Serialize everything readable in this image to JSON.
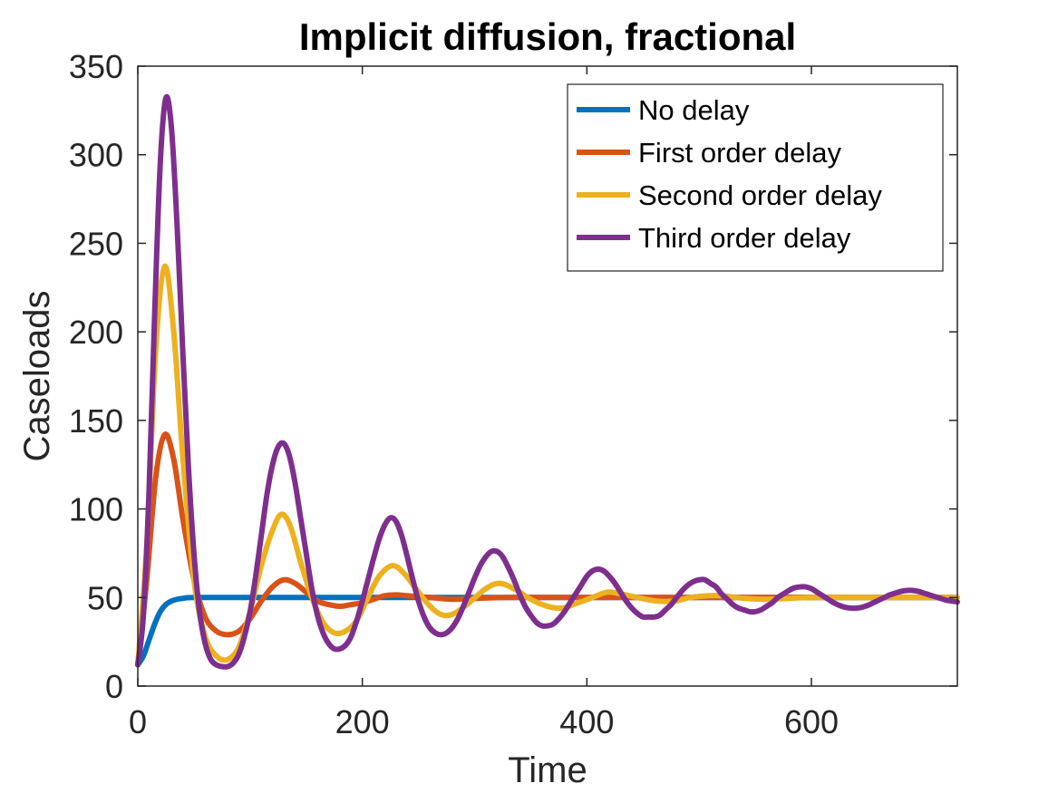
{
  "chart_data": {
    "type": "line",
    "title": "Implicit diffusion, fractional",
    "xlabel": "Time",
    "ylabel": "Caseloads",
    "xlim": [
      0,
      730
    ],
    "ylim": [
      0,
      350
    ],
    "xticks": [
      0,
      200,
      400,
      600
    ],
    "yticks": [
      0,
      50,
      100,
      150,
      200,
      250,
      300,
      350
    ],
    "grid": false,
    "legend_position": "top-right",
    "series": [
      {
        "name": "No delay",
        "color": "#0072BD",
        "points": [
          [
            0,
            12
          ],
          [
            5,
            17
          ],
          [
            10,
            26
          ],
          [
            15,
            35
          ],
          [
            20,
            42
          ],
          [
            25,
            46
          ],
          [
            30,
            48
          ],
          [
            35,
            49
          ],
          [
            40,
            49.5
          ],
          [
            50,
            50
          ],
          [
            100,
            50
          ],
          [
            200,
            50
          ],
          [
            300,
            50
          ],
          [
            400,
            50
          ],
          [
            500,
            50
          ],
          [
            600,
            50
          ],
          [
            730,
            50
          ]
        ]
      },
      {
        "name": "First order delay",
        "color": "#D95319",
        "points": [
          [
            0,
            12
          ],
          [
            8,
            60
          ],
          [
            16,
            118
          ],
          [
            24,
            142
          ],
          [
            32,
            128
          ],
          [
            40,
            95
          ],
          [
            50,
            60
          ],
          [
            60,
            39
          ],
          [
            70,
            31
          ],
          [
            80,
            29
          ],
          [
            90,
            31
          ],
          [
            100,
            38
          ],
          [
            110,
            48
          ],
          [
            120,
            56
          ],
          [
            130,
            60
          ],
          [
            140,
            58
          ],
          [
            150,
            53
          ],
          [
            160,
            48
          ],
          [
            170,
            46
          ],
          [
            180,
            45
          ],
          [
            190,
            46
          ],
          [
            200,
            47
          ],
          [
            210,
            49
          ],
          [
            220,
            51
          ],
          [
            230,
            51.5
          ],
          [
            240,
            51
          ],
          [
            250,
            50.5
          ],
          [
            260,
            50
          ],
          [
            280,
            49
          ],
          [
            300,
            49.5
          ],
          [
            330,
            50
          ],
          [
            400,
            50
          ],
          [
            500,
            50
          ],
          [
            600,
            50
          ],
          [
            730,
            50
          ]
        ]
      },
      {
        "name": "Second order delay",
        "color": "#EDB120",
        "points": [
          [
            0,
            12
          ],
          [
            8,
            80
          ],
          [
            16,
            190
          ],
          [
            24,
            237
          ],
          [
            32,
            200
          ],
          [
            40,
            130
          ],
          [
            50,
            60
          ],
          [
            60,
            28
          ],
          [
            70,
            17
          ],
          [
            80,
            15
          ],
          [
            90,
            22
          ],
          [
            100,
            42
          ],
          [
            110,
            68
          ],
          [
            120,
            88
          ],
          [
            128,
            97
          ],
          [
            136,
            90
          ],
          [
            145,
            70
          ],
          [
            155,
            50
          ],
          [
            165,
            36
          ],
          [
            175,
            30
          ],
          [
            185,
            31
          ],
          [
            195,
            37
          ],
          [
            205,
            50
          ],
          [
            215,
            62
          ],
          [
            227,
            68
          ],
          [
            238,
            63
          ],
          [
            250,
            53
          ],
          [
            262,
            44
          ],
          [
            272,
            40
          ],
          [
            282,
            41
          ],
          [
            295,
            47
          ],
          [
            310,
            55
          ],
          [
            322,
            58
          ],
          [
            335,
            55
          ],
          [
            350,
            49
          ],
          [
            365,
            45
          ],
          [
            378,
            44
          ],
          [
            392,
            47
          ],
          [
            405,
            50
          ],
          [
            418,
            53
          ],
          [
            430,
            52
          ],
          [
            445,
            50
          ],
          [
            462,
            48
          ],
          [
            478,
            48
          ],
          [
            492,
            50
          ],
          [
            507,
            51
          ],
          [
            520,
            51
          ],
          [
            540,
            49.5
          ],
          [
            560,
            49
          ],
          [
            580,
            49.5
          ],
          [
            600,
            50
          ],
          [
            650,
            50
          ],
          [
            700,
            50
          ],
          [
            730,
            50
          ]
        ]
      },
      {
        "name": "Third order delay",
        "color": "#7E2F8E",
        "points": [
          [
            0,
            12
          ],
          [
            5,
            40
          ],
          [
            10,
            110
          ],
          [
            15,
            210
          ],
          [
            20,
            295
          ],
          [
            25,
            332
          ],
          [
            30,
            315
          ],
          [
            35,
            260
          ],
          [
            40,
            190
          ],
          [
            45,
            125
          ],
          [
            50,
            75
          ],
          [
            55,
            42
          ],
          [
            60,
            24
          ],
          [
            65,
            15
          ],
          [
            70,
            12
          ],
          [
            75,
            11
          ],
          [
            80,
            11
          ],
          [
            85,
            13
          ],
          [
            90,
            18
          ],
          [
            95,
            28
          ],
          [
            100,
            42
          ],
          [
            105,
            62
          ],
          [
            110,
            85
          ],
          [
            115,
            108
          ],
          [
            120,
            125
          ],
          [
            125,
            135
          ],
          [
            130,
            137
          ],
          [
            135,
            130
          ],
          [
            140,
            115
          ],
          [
            145,
            95
          ],
          [
            150,
            75
          ],
          [
            155,
            55
          ],
          [
            160,
            40
          ],
          [
            165,
            30
          ],
          [
            170,
            24
          ],
          [
            175,
            21
          ],
          [
            180,
            21
          ],
          [
            185,
            23
          ],
          [
            190,
            28
          ],
          [
            195,
            37
          ],
          [
            200,
            48
          ],
          [
            205,
            60
          ],
          [
            210,
            72
          ],
          [
            215,
            83
          ],
          [
            220,
            91
          ],
          [
            225,
            95
          ],
          [
            230,
            93
          ],
          [
            235,
            85
          ],
          [
            240,
            73
          ],
          [
            245,
            60
          ],
          [
            250,
            48
          ],
          [
            255,
            39
          ],
          [
            260,
            33
          ],
          [
            265,
            30
          ],
          [
            270,
            29
          ],
          [
            275,
            30
          ],
          [
            280,
            33
          ],
          [
            285,
            38
          ],
          [
            290,
            45
          ],
          [
            295,
            53
          ],
          [
            300,
            61
          ],
          [
            305,
            68
          ],
          [
            310,
            73
          ],
          [
            315,
            76
          ],
          [
            320,
            76
          ],
          [
            325,
            73
          ],
          [
            330,
            67
          ],
          [
            335,
            60
          ],
          [
            340,
            52
          ],
          [
            345,
            45
          ],
          [
            350,
            40
          ],
          [
            355,
            36
          ],
          [
            360,
            34
          ],
          [
            365,
            34
          ],
          [
            370,
            35
          ],
          [
            375,
            38
          ],
          [
            380,
            42
          ],
          [
            385,
            47
          ],
          [
            390,
            52
          ],
          [
            395,
            57
          ],
          [
            400,
            62
          ],
          [
            405,
            65
          ],
          [
            410,
            66
          ],
          [
            415,
            65
          ],
          [
            420,
            62
          ],
          [
            425,
            58
          ],
          [
            430,
            53
          ],
          [
            435,
            48
          ],
          [
            440,
            44
          ],
          [
            445,
            41
          ],
          [
            450,
            39
          ],
          [
            455,
            39
          ],
          [
            460,
            39
          ],
          [
            465,
            40
          ],
          [
            470,
            43
          ],
          [
            475,
            46
          ],
          [
            480,
            50
          ],
          [
            485,
            54
          ],
          [
            490,
            57
          ],
          [
            495,
            59
          ],
          [
            500,
            60
          ],
          [
            505,
            60
          ],
          [
            510,
            58
          ],
          [
            515,
            56
          ],
          [
            520,
            52
          ],
          [
            525,
            49
          ],
          [
            530,
            46
          ],
          [
            535,
            44
          ],
          [
            540,
            43
          ],
          [
            545,
            42
          ],
          [
            550,
            42
          ],
          [
            555,
            43
          ],
          [
            560,
            45
          ],
          [
            565,
            47
          ],
          [
            570,
            50
          ],
          [
            575,
            52
          ],
          [
            580,
            54
          ],
          [
            585,
            55.5
          ],
          [
            590,
            56
          ],
          [
            595,
            56
          ],
          [
            600,
            55
          ],
          [
            605,
            53
          ],
          [
            610,
            51
          ],
          [
            615,
            49
          ],
          [
            620,
            47
          ],
          [
            625,
            45.5
          ],
          [
            630,
            44.5
          ],
          [
            635,
            44
          ],
          [
            640,
            44
          ],
          [
            645,
            44.5
          ],
          [
            650,
            45.5
          ],
          [
            655,
            47
          ],
          [
            660,
            48.5
          ],
          [
            665,
            50
          ],
          [
            670,
            51.5
          ],
          [
            675,
            52.5
          ],
          [
            680,
            53.5
          ],
          [
            685,
            54
          ],
          [
            690,
            54
          ],
          [
            695,
            53.5
          ],
          [
            700,
            52.5
          ],
          [
            705,
            51.5
          ],
          [
            710,
            50.5
          ],
          [
            715,
            49.5
          ],
          [
            720,
            48.5
          ],
          [
            725,
            48
          ],
          [
            730,
            47.5
          ]
        ]
      }
    ]
  }
}
